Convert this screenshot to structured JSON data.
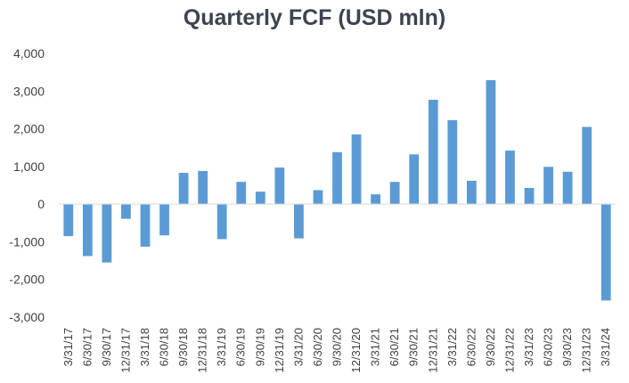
{
  "chart_data": {
    "type": "bar",
    "title": "Quarterly FCF (USD mln)",
    "xlabel": "",
    "ylabel": "",
    "ylim": [
      -3000,
      4000
    ],
    "yticks": [
      4000,
      3000,
      2000,
      1000,
      0,
      -1000,
      -2000,
      -3000
    ],
    "ytick_labels": [
      "4,000",
      "3,000",
      "2,000",
      "1,000",
      "0",
      "-1,000",
      "-2,000",
      "-3,000"
    ],
    "grid": false,
    "legend": "none",
    "bar_color": "#5b9bd5",
    "categories": [
      "3/31/17",
      "6/30/17",
      "9/30/17",
      "12/31/17",
      "3/31/18",
      "6/30/18",
      "9/30/18",
      "12/31/18",
      "3/31/19",
      "6/30/19",
      "9/30/19",
      "12/31/19",
      "3/31/20",
      "6/30/20",
      "9/30/20",
      "12/31/20",
      "3/31/21",
      "6/30/21",
      "9/30/21",
      "12/31/21",
      "3/31/22",
      "6/30/22",
      "9/30/22",
      "12/31/22",
      "3/31/23",
      "6/30/23",
      "9/30/23",
      "12/31/23",
      "3/31/24"
    ],
    "values": [
      -850,
      -1380,
      -1550,
      -390,
      -1130,
      -830,
      830,
      880,
      -930,
      590,
      330,
      970,
      -910,
      370,
      1380,
      1850,
      260,
      590,
      1320,
      2770,
      2230,
      620,
      3290,
      1420,
      430,
      990,
      860,
      2050,
      -2560
    ]
  }
}
